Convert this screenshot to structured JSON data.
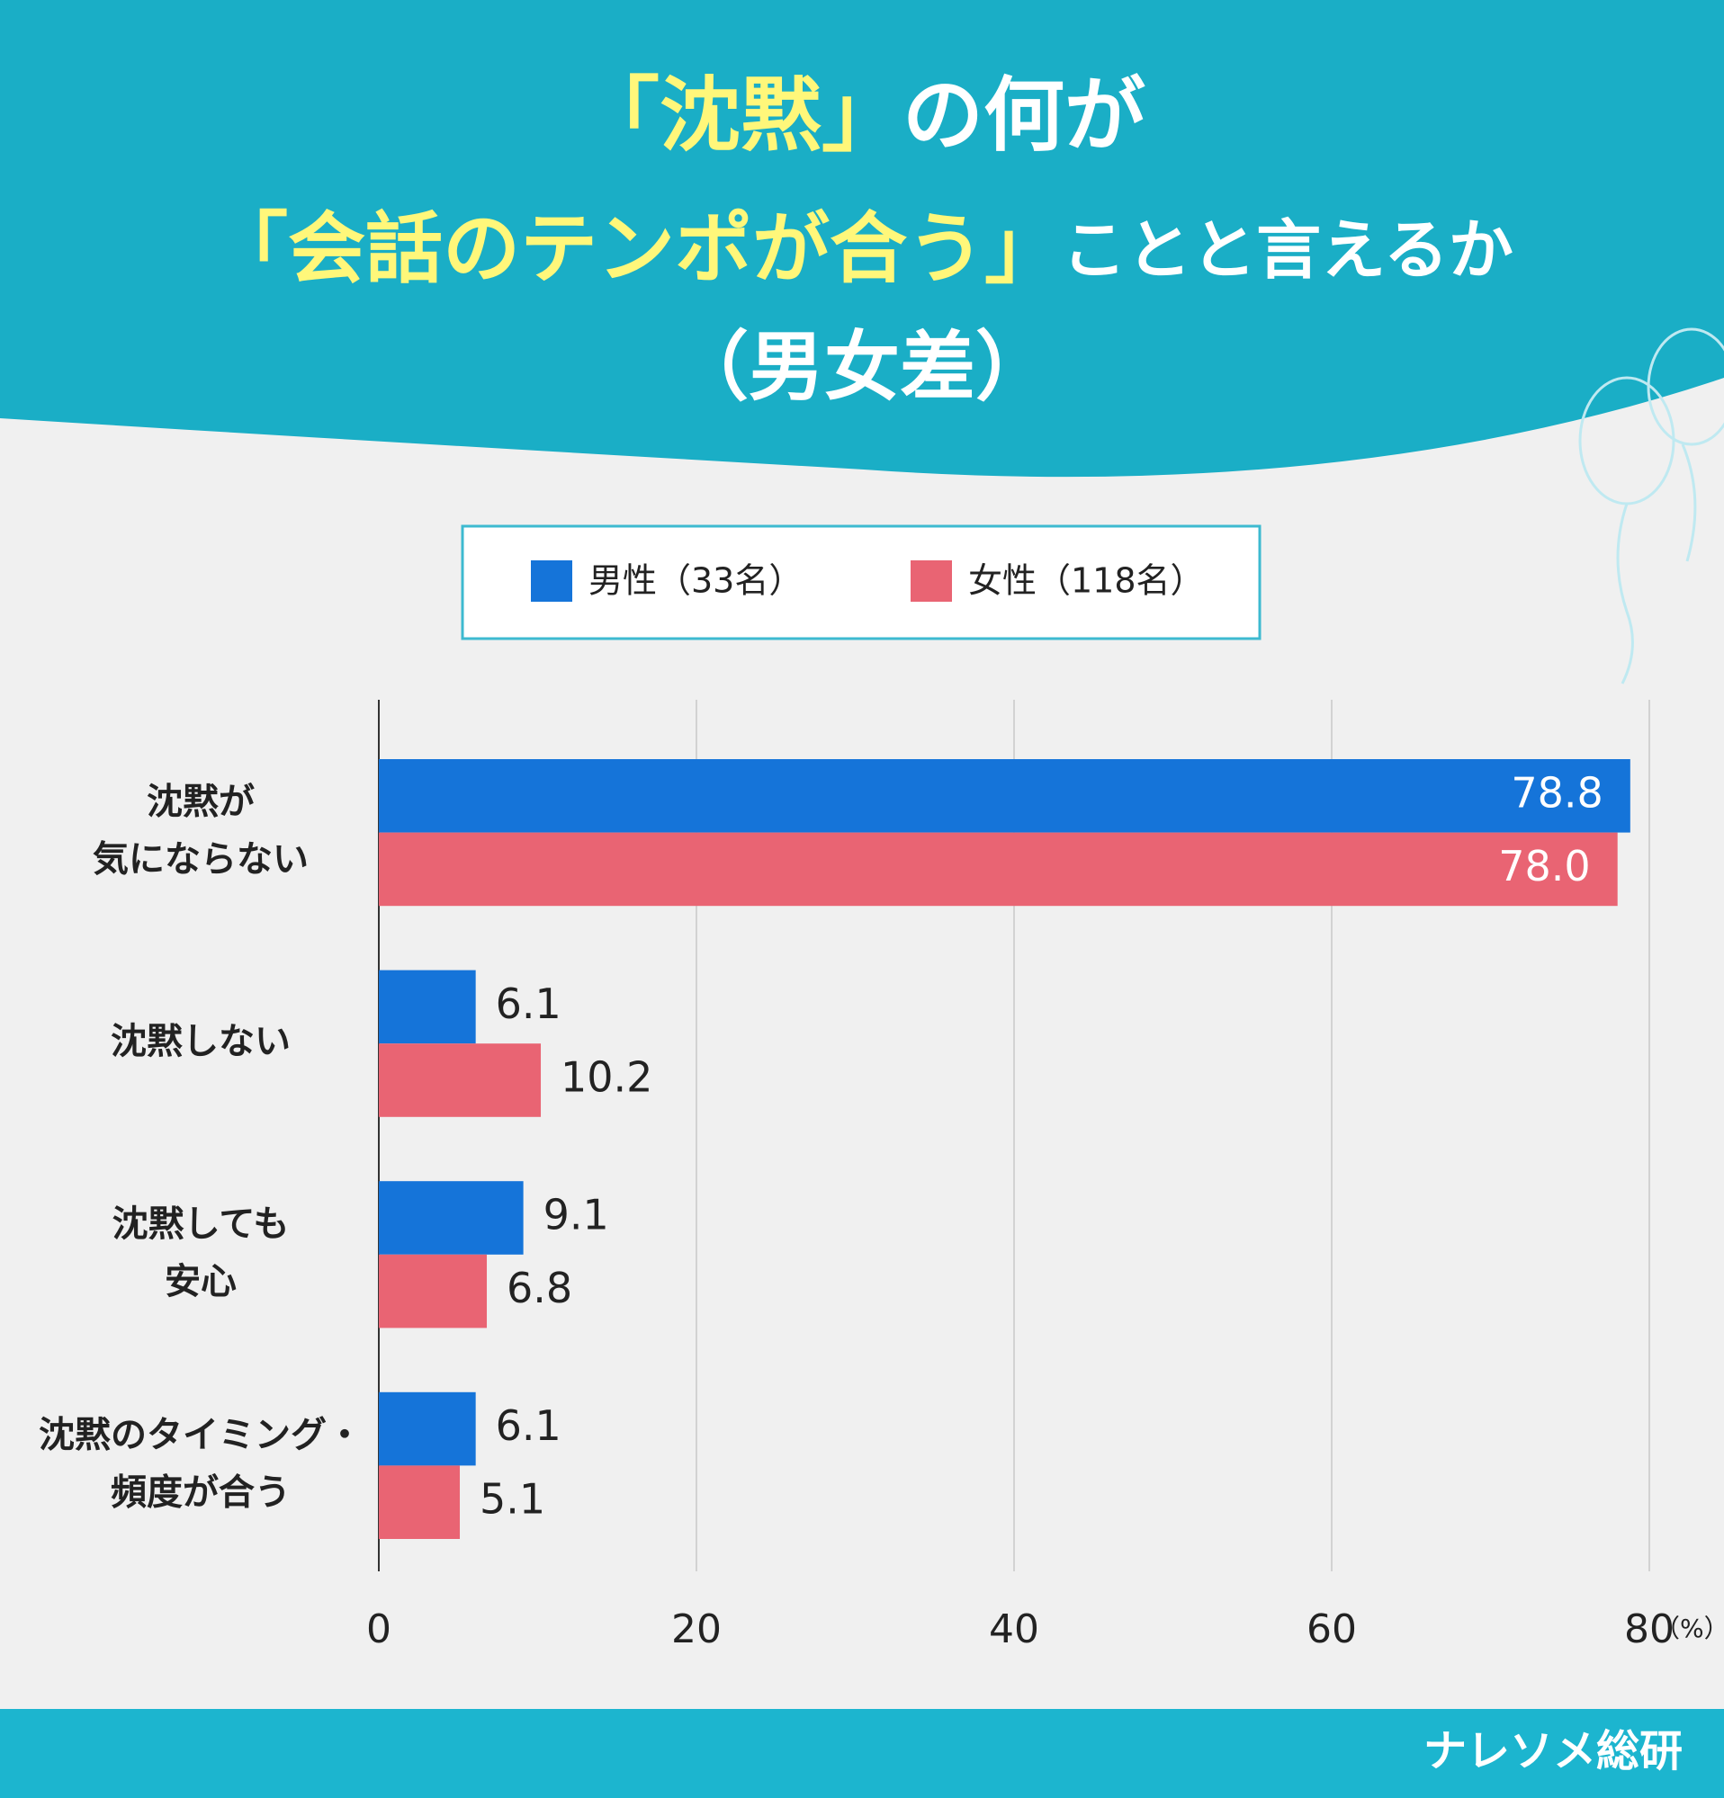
{
  "title_lines": [
    [
      "「沈黙」",
      "の何が"
    ],
    [
      "「会話のテンポが合う」",
      "ことと言えるか"
    ],
    [
      "（男女差）"
    ]
  ],
  "chart_data": {
    "type": "barh",
    "categories": [
      [
        "沈黙が",
        "気にならない"
      ],
      [
        "沈黙しない"
      ],
      [
        "沈黙しても",
        "安心"
      ],
      [
        "沈黙のタイミング・",
        "頻度が合う"
      ]
    ],
    "series": [
      {
        "name": "男性（33名）",
        "color": "#1574d9",
        "values": [
          78.8,
          6.1,
          9.1,
          6.1
        ]
      },
      {
        "name": "女性（118名）",
        "color": "#e96473",
        "values": [
          78.0,
          10.2,
          6.8,
          5.1
        ],
        "value_labels": [
          "78.0",
          "10.2",
          "6.8",
          "5.1"
        ]
      }
    ],
    "xlim": [
      0,
      80
    ],
    "xticks": [
      0,
      20,
      40,
      60,
      80
    ],
    "x_unit": "（%）",
    "grid": true
  },
  "brand": "ナレソメ総研"
}
